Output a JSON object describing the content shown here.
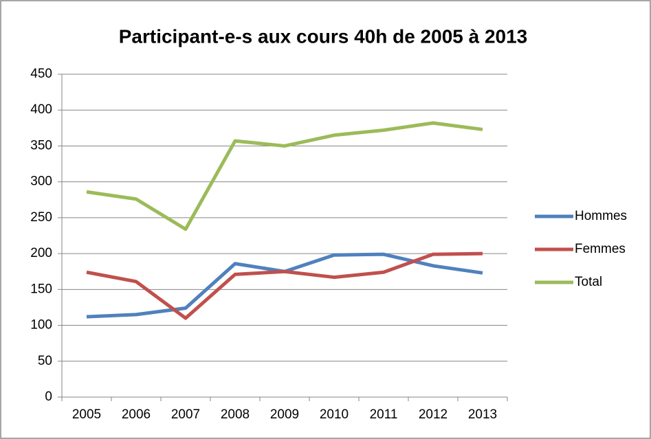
{
  "chart_data": {
    "type": "line",
    "title": "Participant-e-s aux cours 40h de 2005 à 2013",
    "categories": [
      "2005",
      "2006",
      "2007",
      "2008",
      "2009",
      "2010",
      "2011",
      "2012",
      "2013"
    ],
    "series": [
      {
        "name": "Hommes",
        "color": "#4f81bd",
        "values": [
          112,
          115,
          124,
          186,
          175,
          198,
          199,
          183,
          173
        ]
      },
      {
        "name": "Femmes",
        "color": "#c0504d",
        "values": [
          174,
          161,
          110,
          171,
          175,
          167,
          174,
          199,
          200
        ]
      },
      {
        "name": "Total",
        "color": "#9bbb59",
        "values": [
          286,
          276,
          234,
          357,
          350,
          365,
          372,
          382,
          373
        ]
      }
    ],
    "ylim": [
      0,
      450
    ],
    "yticks": [
      0,
      50,
      100,
      150,
      200,
      250,
      300,
      350,
      400,
      450
    ],
    "grid": true,
    "legend": "right"
  }
}
